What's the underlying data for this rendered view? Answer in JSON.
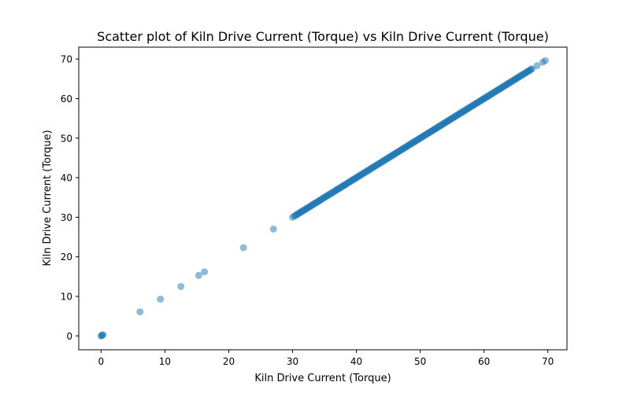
{
  "chart_data": {
    "type": "scatter",
    "title": "Scatter plot of Kiln Drive Current (Torque) vs Kiln Drive Current (Torque)",
    "xlabel": "Kiln Drive Current (Torque)",
    "ylabel": "Kiln Drive Current (Torque)",
    "xlim": [
      -3.5,
      73.0
    ],
    "ylim": [
      -3.5,
      73.0
    ],
    "xticks": [
      0,
      10,
      20,
      30,
      40,
      50,
      60,
      70
    ],
    "yticks": [
      0,
      10,
      20,
      30,
      40,
      50,
      60,
      70
    ],
    "grid": false,
    "marker_color": "#1f77b4",
    "marker_alpha": 0.5,
    "isolated_points": [
      [
        0.0,
        0.0
      ],
      [
        0.1,
        0.1
      ],
      [
        0.2,
        0.2
      ],
      [
        0.3,
        0.3
      ],
      [
        6.1,
        6.1
      ],
      [
        9.3,
        9.3
      ],
      [
        12.5,
        12.5
      ],
      [
        15.3,
        15.3
      ],
      [
        16.2,
        16.2
      ],
      [
        22.3,
        22.3
      ],
      [
        27.0,
        27.0
      ],
      [
        30.0,
        30.0
      ],
      [
        68.3,
        68.3
      ],
      [
        69.2,
        69.2
      ],
      [
        69.6,
        69.6
      ]
    ],
    "dense_segment": {
      "x_start": 30.3,
      "x_end": 67.5,
      "relation": "y = x"
    }
  }
}
